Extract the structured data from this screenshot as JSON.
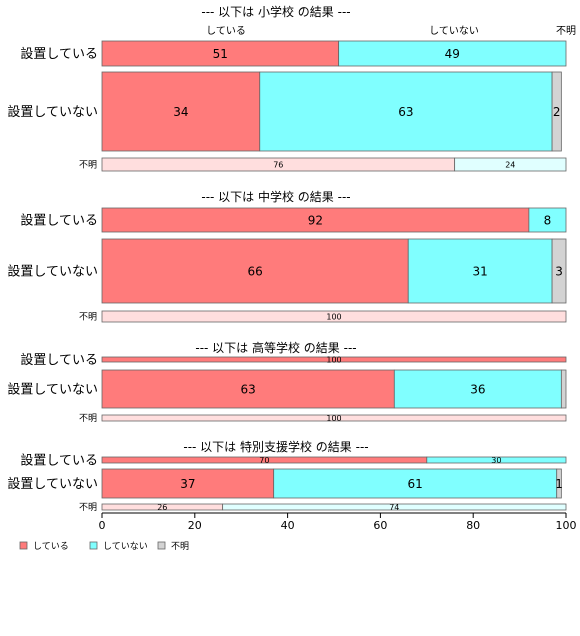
{
  "chart_data": {
    "type": "bar",
    "orientation": "horizontal",
    "stacked": true,
    "xlim": [
      0,
      100
    ],
    "x_ticks": [
      "0",
      "20",
      "40",
      "60",
      "80",
      "100"
    ],
    "header_labels": [
      "している",
      "していない",
      "不明"
    ],
    "panels": [
      {
        "title": "--- 以下は 小学校 の結果 ---",
        "rows": [
          {
            "label": "設置している",
            "values": [
              51,
              49,
              0
            ],
            "value_labels": [
              "51",
              "49",
              ""
            ]
          },
          {
            "label": "設置していない",
            "values": [
              34,
              63,
              2
            ],
            "value_labels": [
              "34",
              "63",
              "2"
            ]
          },
          {
            "label": "不明",
            "values": [
              76,
              24,
              0
            ],
            "value_labels": [
              "76",
              "24",
              ""
            ]
          }
        ]
      },
      {
        "title": "--- 以下は 中学校 の結果 ---",
        "rows": [
          {
            "label": "設置している",
            "values": [
              92,
              8,
              0
            ],
            "value_labels": [
              "92",
              "8",
              ""
            ]
          },
          {
            "label": "設置していない",
            "values": [
              66,
              31,
              3
            ],
            "value_labels": [
              "66",
              "31",
              "3"
            ]
          },
          {
            "label": "不明",
            "values": [
              100,
              0,
              0
            ],
            "value_labels": [
              "100",
              "",
              ""
            ]
          }
        ]
      },
      {
        "title": "--- 以下は 高等学校 の結果 ---",
        "rows": [
          {
            "label": "設置している",
            "values": [
              100,
              0,
              0
            ],
            "value_labels": [
              "100",
              "",
              ""
            ]
          },
          {
            "label": "設置していない",
            "values": [
              63,
              36,
              1
            ],
            "value_labels": [
              "63",
              "36",
              ""
            ]
          },
          {
            "label": "不明",
            "values": [
              100,
              0,
              0
            ],
            "value_labels": [
              "100",
              "",
              ""
            ]
          }
        ]
      },
      {
        "title": "--- 以下は 特別支援学校 の結果 ---",
        "rows": [
          {
            "label": "設置している",
            "values": [
              70,
              30,
              0
            ],
            "value_labels": [
              "70",
              "30",
              ""
            ]
          },
          {
            "label": "設置していない",
            "values": [
              37,
              61,
              1
            ],
            "value_labels": [
              "37",
              "61",
              "1"
            ]
          },
          {
            "label": "不明",
            "values": [
              26,
              74,
              0
            ],
            "value_labels": [
              "26",
              "74",
              ""
            ]
          }
        ]
      }
    ],
    "series": [
      {
        "name": "している",
        "color": "#ff7b7b",
        "light_color": "#ffdede"
      },
      {
        "name": "していない",
        "color": "#80ffff",
        "light_color": "#e0ffff"
      },
      {
        "name": "不明",
        "color": "#d3d3d3",
        "light_color": "#f2f2f2"
      }
    ],
    "legend": {
      "placement": "bottom-left",
      "labels": [
        "している",
        "していない",
        "不明"
      ]
    },
    "title_color": "#0000ff",
    "grid": false
  }
}
